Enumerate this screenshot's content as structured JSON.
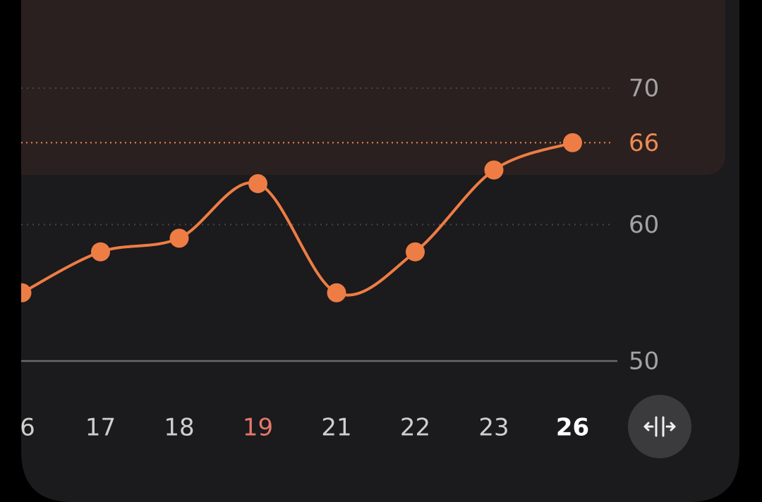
{
  "chart_data": {
    "type": "line",
    "categories": [
      "6",
      "17",
      "18",
      "19",
      "21",
      "22",
      "23",
      "26"
    ],
    "series": [
      {
        "name": null,
        "color": "#ee7d45",
        "values": [
          55,
          58,
          59,
          63,
          55,
          58,
          64,
          66
        ]
      }
    ],
    "ylim": [
      50,
      70
    ],
    "yticks": [
      50,
      60,
      70
    ],
    "reference_line": 66,
    "grid": true
  }
}
